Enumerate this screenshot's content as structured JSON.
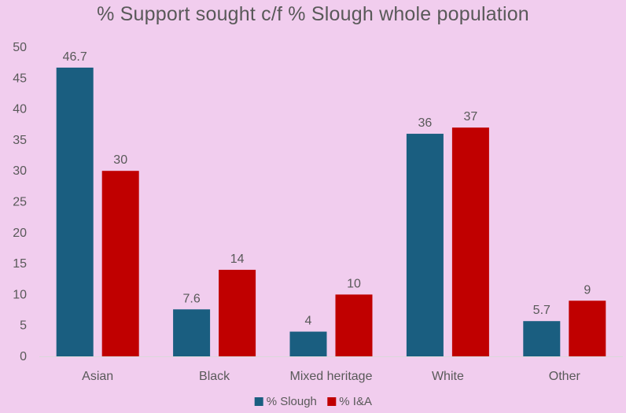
{
  "chart_data": {
    "type": "bar",
    "title": "% Support sought c/f  % Slough whole population",
    "categories": [
      "Asian",
      "Black",
      "Mixed heritage",
      "White",
      "Other"
    ],
    "series": [
      {
        "name": "% Slough",
        "color": "#1a5e80",
        "values": [
          46.7,
          7.6,
          4,
          36,
          5.7
        ],
        "labels": [
          "46.7",
          "7.6",
          "4",
          "36",
          "5.7"
        ]
      },
      {
        "name": "% I&A",
        "color": "#c00000",
        "values": [
          30,
          14,
          10,
          37,
          9
        ],
        "labels": [
          "30",
          "14",
          "10",
          "37",
          "9"
        ]
      }
    ],
    "ylim": [
      0,
      50
    ],
    "yticks": [
      0,
      5,
      10,
      15,
      20,
      25,
      30,
      35,
      40,
      45,
      50
    ],
    "grid": false,
    "legend_position": "bottom"
  }
}
